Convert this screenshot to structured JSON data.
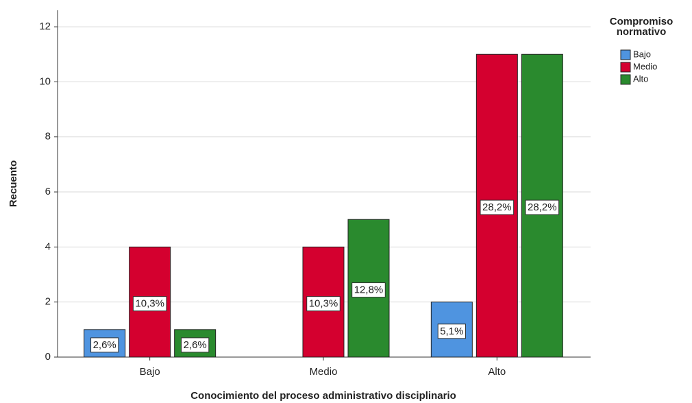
{
  "chart_data": {
    "type": "bar",
    "x_label": "Conocimiento del proceso administrativo disciplinario",
    "y_label": "Recuento",
    "legend_title": "Compromiso normativo",
    "categories": [
      "Bajo",
      "Medio",
      "Alto"
    ],
    "series": [
      {
        "name": "Bajo",
        "color": "#4f94e0",
        "values": [
          1,
          null,
          2
        ],
        "value_labels": [
          "2,6%",
          null,
          "5,1%"
        ]
      },
      {
        "name": "Medio",
        "color": "#d4002f",
        "values": [
          4,
          4,
          11
        ],
        "value_labels": [
          "10,3%",
          "10,3%",
          "28,2%"
        ]
      },
      {
        "name": "Alto",
        "color": "#2a8a2e",
        "values": [
          1,
          5,
          11
        ],
        "value_labels": [
          "2,6%",
          "12,8%",
          "28,2%"
        ]
      }
    ],
    "ylim": [
      0,
      12.6
    ],
    "yticks": [
      0,
      2,
      4,
      6,
      8,
      10,
      12
    ],
    "grid": true,
    "legend": "right"
  }
}
